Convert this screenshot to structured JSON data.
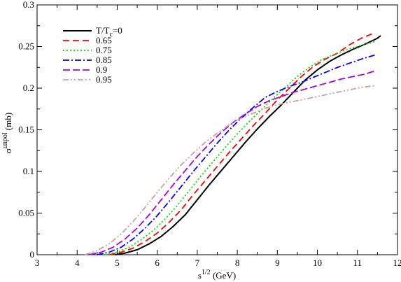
{
  "chart_data": {
    "type": "line",
    "title": "",
    "xlabel": {
      "base": "s",
      "sup": "1/2",
      "unit": " (GeV)"
    },
    "ylabel": {
      "base": "σ",
      "sup": "unpol",
      "unit": " (mb)"
    },
    "xlim": [
      3,
      12
    ],
    "ylim": [
      0,
      0.3
    ],
    "x_ticks": [
      3,
      4,
      5,
      6,
      7,
      8,
      9,
      10,
      11,
      12
    ],
    "y_ticks": [
      0,
      0.05,
      0.1,
      0.15,
      0.2,
      0.25,
      0.3
    ],
    "x_tick_labels": [
      "3",
      "4",
      "5",
      "6",
      "7",
      "8",
      "9",
      "10",
      "11",
      "12"
    ],
    "y_tick_labels": [
      "0",
      "0.05",
      "0.1",
      "0.15",
      "0.2",
      "0.25",
      "0.3"
    ],
    "grid": false,
    "legend_position": "top-left",
    "legend_title": {
      "pre": "T/T",
      "sub": "c",
      "post": "=0"
    },
    "series": [
      {
        "name": "T/Tc=0",
        "color": "#000000",
        "dash": "",
        "x": [
          4.95,
          5.2,
          5.5,
          5.8,
          6.1,
          6.4,
          6.7,
          7.0,
          7.3,
          7.6,
          7.9,
          8.2,
          8.5,
          8.8,
          9.1,
          9.4,
          9.7,
          10.0,
          10.3,
          10.6,
          10.9,
          11.2,
          11.5,
          11.58
        ],
        "y": [
          0.0,
          0.002,
          0.006,
          0.013,
          0.022,
          0.034,
          0.048,
          0.066,
          0.084,
          0.101,
          0.118,
          0.135,
          0.151,
          0.166,
          0.18,
          0.195,
          0.21,
          0.222,
          0.232,
          0.24,
          0.247,
          0.253,
          0.26,
          0.263
        ]
      },
      {
        "name": "0.65",
        "color": "#ff0000",
        "dash": "9,5",
        "x": [
          4.8,
          5.1,
          5.4,
          5.7,
          6.0,
          6.3,
          6.6,
          6.9,
          7.2,
          7.5,
          7.8,
          8.1,
          8.4,
          8.7,
          9.0,
          9.3,
          9.6,
          9.9,
          10.2,
          10.5,
          10.8,
          11.1,
          11.4
        ],
        "y": [
          0.0,
          0.003,
          0.008,
          0.016,
          0.026,
          0.039,
          0.054,
          0.072,
          0.089,
          0.106,
          0.123,
          0.139,
          0.155,
          0.17,
          0.186,
          0.2,
          0.214,
          0.226,
          0.235,
          0.242,
          0.252,
          0.26,
          0.266
        ]
      },
      {
        "name": "0.75",
        "color": "#00dd00",
        "dash": "2,3",
        "x": [
          4.7,
          5.0,
          5.3,
          5.6,
          5.9,
          6.2,
          6.5,
          6.8,
          7.1,
          7.4,
          7.7,
          8.0,
          8.3,
          8.6,
          8.9,
          9.2,
          9.5,
          9.8,
          10.1,
          10.4,
          10.7,
          11.0,
          11.3,
          11.45
        ],
        "y": [
          0.0,
          0.003,
          0.009,
          0.018,
          0.029,
          0.043,
          0.059,
          0.077,
          0.095,
          0.112,
          0.129,
          0.145,
          0.16,
          0.174,
          0.188,
          0.201,
          0.214,
          0.225,
          0.234,
          0.24,
          0.246,
          0.25,
          0.254,
          0.256
        ]
      },
      {
        "name": "0.85",
        "color": "#0000ff",
        "dash": "9,3,2,3",
        "x": [
          4.5,
          4.8,
          5.1,
          5.4,
          5.7,
          6.0,
          6.3,
          6.6,
          6.9,
          7.2,
          7.5,
          7.8,
          8.1,
          8.4,
          8.7,
          9.0,
          9.3,
          9.6,
          9.9,
          10.2,
          10.5,
          10.8,
          11.1,
          11.45
        ],
        "y": [
          0.0,
          0.003,
          0.009,
          0.019,
          0.032,
          0.047,
          0.064,
          0.082,
          0.1,
          0.117,
          0.134,
          0.15,
          0.164,
          0.177,
          0.189,
          0.196,
          0.202,
          0.207,
          0.213,
          0.219,
          0.225,
          0.23,
          0.235,
          0.24
        ]
      },
      {
        "name": "0.9",
        "color": "#aa00dd",
        "dash": "10,4",
        "x": [
          4.3,
          4.6,
          4.9,
          5.2,
          5.5,
          5.8,
          6.1,
          6.4,
          6.7,
          7.0,
          7.3,
          7.6,
          7.9,
          8.2,
          8.5,
          8.8,
          9.1,
          9.4,
          9.7,
          10.0,
          10.3,
          10.6,
          10.9,
          11.2,
          11.45
        ],
        "y": [
          0.0,
          0.003,
          0.009,
          0.019,
          0.032,
          0.048,
          0.066,
          0.084,
          0.101,
          0.118,
          0.133,
          0.147,
          0.159,
          0.169,
          0.178,
          0.185,
          0.19,
          0.195,
          0.199,
          0.203,
          0.207,
          0.211,
          0.214,
          0.217,
          0.221
        ]
      },
      {
        "name": "0.95",
        "color": "#c8a0a0",
        "dash": "8,3,2,3,2,3",
        "x": [
          4.2,
          4.5,
          4.8,
          5.1,
          5.4,
          5.7,
          6.0,
          6.3,
          6.6,
          6.9,
          7.2,
          7.5,
          7.8,
          8.1,
          8.4,
          8.7,
          9.0,
          9.3,
          9.6,
          9.9,
          10.2,
          10.5,
          10.8,
          11.1,
          11.45
        ],
        "y": [
          0.0,
          0.005,
          0.013,
          0.025,
          0.04,
          0.057,
          0.075,
          0.092,
          0.108,
          0.122,
          0.135,
          0.146,
          0.156,
          0.164,
          0.17,
          0.176,
          0.18,
          0.183,
          0.186,
          0.189,
          0.192,
          0.195,
          0.198,
          0.201,
          0.203
        ]
      }
    ]
  }
}
